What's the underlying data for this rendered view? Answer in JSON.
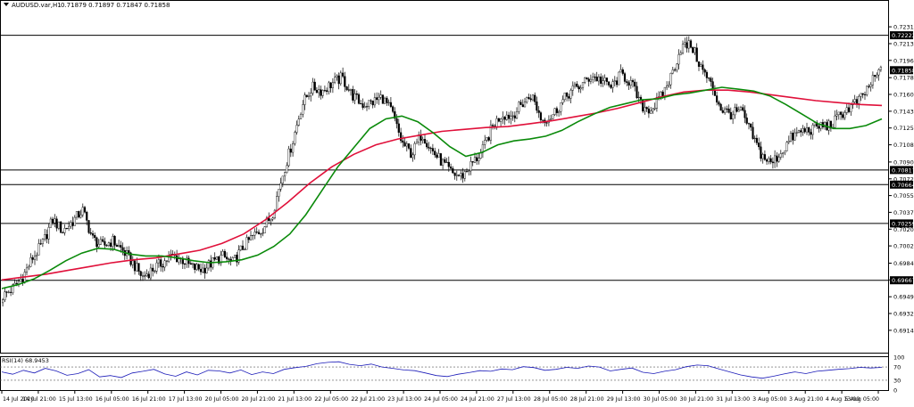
{
  "header": {
    "collapse_icon": "triangle-down-icon",
    "symbol_text": "AUDUSD.var,H1",
    "ohlc_text": "0.71879 0.71897 0.71847 0.71858"
  },
  "rsi_panel": {
    "label": "RSI(14) 68.9453",
    "levels": [
      100,
      70,
      30,
      0
    ],
    "dotted_levels": [
      70,
      30
    ],
    "line_color": "#1a1ab8"
  },
  "colors": {
    "bull_candle": "#ffffff",
    "bear_candle": "#000000",
    "candle_outline": "#000000",
    "ma_fast": "#0a8a0a",
    "ma_slow": "#e0103a",
    "hline": "#000000",
    "price_tag_bg": "#000000",
    "price_tag_text": "#ffffff"
  },
  "chart_data": {
    "type": "candlestick",
    "title": "AUDUSD.var,H1",
    "y_axis": {
      "ylim": [
        0.6893,
        0.7246
      ],
      "ticks": [
        "0.72310",
        "0.72135",
        "0.71960",
        "0.71780",
        "0.71605",
        "0.71430",
        "0.71255",
        "0.71080",
        "0.70900",
        "0.70725",
        "0.70550",
        "0.70375",
        "0.70200",
        "0.70025",
        "0.69845",
        "0.69670",
        "0.69495",
        "0.69320",
        "0.69145"
      ],
      "highlighted_tags": [
        "0.72222",
        "0.71858",
        "0.70817",
        "0.70664",
        "0.70259",
        "0.69667"
      ]
    },
    "x_axis": {
      "ticks": [
        "14 Jul 2020",
        "14 Jul 21:00",
        "15 Jul 13:00",
        "16 Jul 05:00",
        "16 Jul 21:00",
        "17 Jul 13:00",
        "20 Jul 05:00",
        "20 Jul 21:00",
        "21 Jul 13:00",
        "22 Jul 05:00",
        "22 Jul 21:00",
        "23 Jul 13:00",
        "24 Jul 05:00",
        "24 Jul 21:00",
        "27 Jul 13:00",
        "28 Jul 05:00",
        "28 Jul 21:00",
        "29 Jul 13:00",
        "30 Jul 05:00",
        "30 Jul 21:00",
        "31 Jul 13:00",
        "3 Aug 05:00",
        "3 Aug 21:00",
        "4 Aug 13:00",
        "5 Aug 05:00"
      ]
    },
    "horizontal_lines": [
      0.72222,
      0.70817,
      0.70664,
      0.70259,
      0.69667
    ],
    "current_price": 0.71858,
    "price_path": [
      0.695,
      0.6958,
      0.697,
      0.699,
      0.7005,
      0.703,
      0.7018,
      0.7028,
      0.704,
      0.701,
      0.7002,
      0.7008,
      0.6998,
      0.6985,
      0.697,
      0.6978,
      0.6985,
      0.6992,
      0.6988,
      0.698,
      0.6978,
      0.6985,
      0.6992,
      0.6984,
      0.7,
      0.7012,
      0.702,
      0.7035,
      0.7075,
      0.711,
      0.715,
      0.7168,
      0.7164,
      0.7172,
      0.7178,
      0.716,
      0.715,
      0.7152,
      0.7158,
      0.7142,
      0.711,
      0.7098,
      0.712,
      0.7102,
      0.709,
      0.7078,
      0.7075,
      0.7088,
      0.71,
      0.7125,
      0.714,
      0.7138,
      0.715,
      0.716,
      0.7134,
      0.7138,
      0.7152,
      0.7165,
      0.717,
      0.718,
      0.7175,
      0.7168,
      0.7182,
      0.7172,
      0.7148,
      0.7145,
      0.7158,
      0.718,
      0.721,
      0.7212,
      0.7188,
      0.717,
      0.7145,
      0.714,
      0.7143,
      0.712,
      0.7098,
      0.7088,
      0.71,
      0.7115,
      0.7122,
      0.7124,
      0.7128,
      0.7128,
      0.714,
      0.7148,
      0.7156,
      0.7172,
      0.7186
    ],
    "ma_fast": [
      0.6958,
      0.6962,
      0.6968,
      0.6977,
      0.6987,
      0.6995,
      0.7,
      0.6999,
      0.6994,
      0.6992,
      0.6992,
      0.699,
      0.6987,
      0.6985,
      0.6986,
      0.6988,
      0.6993,
      0.7002,
      0.7015,
      0.7035,
      0.706,
      0.7085,
      0.7105,
      0.7125,
      0.7135,
      0.7138,
      0.7132,
      0.712,
      0.7106,
      0.7096,
      0.71,
      0.7108,
      0.7112,
      0.7114,
      0.7117,
      0.7123,
      0.7132,
      0.714,
      0.7147,
      0.7151,
      0.7155,
      0.7156,
      0.716,
      0.7162,
      0.7165,
      0.7168,
      0.7166,
      0.7164,
      0.7159,
      0.715,
      0.714,
      0.713,
      0.7125,
      0.7125,
      0.7128,
      0.7135
    ],
    "ma_slow": [
      0.6967,
      0.697,
      0.6973,
      0.6977,
      0.6981,
      0.6985,
      0.6988,
      0.699,
      0.6994,
      0.6998,
      0.7005,
      0.7015,
      0.703,
      0.7048,
      0.7068,
      0.7085,
      0.7098,
      0.7108,
      0.7114,
      0.7118,
      0.7122,
      0.7124,
      0.7126,
      0.7127,
      0.713,
      0.7133,
      0.7137,
      0.7141,
      0.7146,
      0.7152,
      0.7158,
      0.7163,
      0.7165,
      0.7165,
      0.7163,
      0.716,
      0.7157,
      0.7154,
      0.7152,
      0.715,
      0.7149
    ],
    "rsi_series": [
      55,
      48,
      60,
      52,
      66,
      58,
      45,
      50,
      62,
      40,
      44,
      38,
      52,
      57,
      63,
      49,
      42,
      55,
      46,
      60,
      58,
      52,
      61,
      47,
      55,
      50,
      63,
      68,
      72,
      80,
      84,
      86,
      78,
      74,
      79,
      70,
      66,
      61,
      59,
      52,
      44,
      41,
      48,
      53,
      59,
      57,
      64,
      62,
      71,
      68,
      60,
      63,
      69,
      66,
      73,
      70,
      58,
      63,
      67,
      54,
      50,
      57,
      62,
      71,
      76,
      74,
      64,
      55,
      46,
      40,
      36,
      42,
      49,
      55,
      50,
      57,
      60,
      63,
      65,
      69,
      67,
      69
    ]
  }
}
